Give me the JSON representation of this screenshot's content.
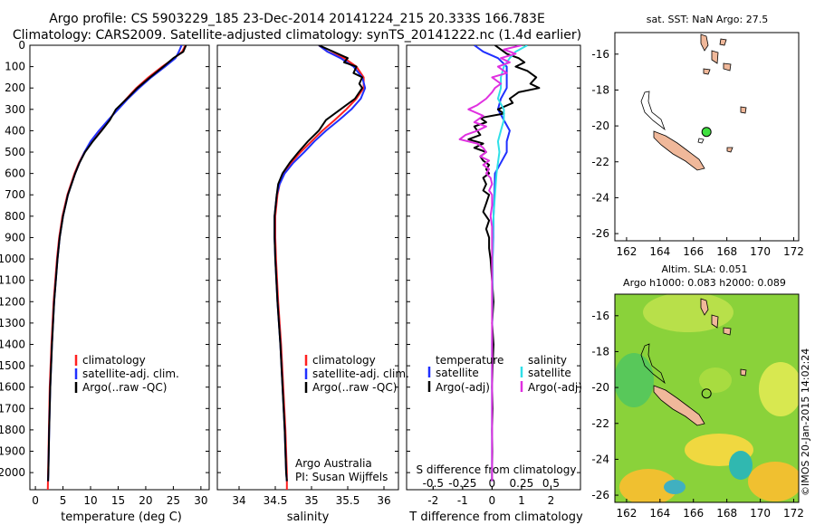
{
  "header": {
    "line1": "Argo profile: CS 5903229_185 23-Dec-2014 20141224_215 20.333S 166.783E",
    "line2": "Climatology: CARS2009. Satellite-adjusted climatology: synTS_20141222.nc (1.4d earlier)"
  },
  "colors": {
    "climatology": "#ff2020",
    "satellite": "#2030ff",
    "argo": "#000000",
    "sat_salinity": "#30e0e8",
    "argo_salinity": "#e030e0",
    "land": "#f0b89a"
  },
  "chart_data": [
    {
      "type": "line",
      "name": "temperature-profile",
      "xlabel": "temperature (deg C)",
      "ylabel": "depth",
      "xlim": [
        -1,
        31.5
      ],
      "ylim": [
        2080,
        0
      ],
      "xticks": [
        "0",
        "5",
        "10",
        "15",
        "20",
        "25",
        "30"
      ],
      "xtick_values": [
        0,
        5,
        10,
        15,
        20,
        25,
        30
      ],
      "yticks": [
        "0",
        "100",
        "200",
        "300",
        "400",
        "500",
        "600",
        "700",
        "800",
        "900",
        "1000",
        "1100",
        "1200",
        "1300",
        "1400",
        "1500",
        "1600",
        "1700",
        "1800",
        "1900",
        "2000"
      ],
      "ytick_values": [
        0,
        100,
        200,
        300,
        400,
        500,
        600,
        700,
        800,
        900,
        1000,
        1100,
        1200,
        1300,
        1400,
        1500,
        1600,
        1700,
        1800,
        1900,
        2000
      ],
      "legend": [
        "climatology",
        "satellite-adj. clim.",
        "Argo(..raw -QC)"
      ],
      "series": [
        {
          "name": "climatology",
          "depth": [
            0,
            30,
            60,
            100,
            150,
            200,
            250,
            300,
            350,
            400,
            450,
            500,
            550,
            600,
            700,
            800,
            900,
            1000,
            1200,
            1400,
            1600,
            1800,
            2000,
            2080
          ],
          "values": [
            27.2,
            26.6,
            25.2,
            23.0,
            20.5,
            18.3,
            16.5,
            14.8,
            13.3,
            11.7,
            10.2,
            8.9,
            7.9,
            7.1,
            5.8,
            4.9,
            4.3,
            3.9,
            3.3,
            2.9,
            2.6,
            2.45,
            2.3,
            2.25
          ]
        },
        {
          "name": "satellite",
          "depth": [
            0,
            30,
            60,
            100,
            150,
            200,
            250,
            300,
            350,
            400,
            450,
            500,
            550,
            600,
            700,
            800,
            900,
            1000,
            1200,
            1400,
            1600,
            1800,
            2000,
            2040
          ],
          "values": [
            26.5,
            26.0,
            25.4,
            23.5,
            21.0,
            18.8,
            16.8,
            15.0,
            13.2,
            11.5,
            10.0,
            8.9,
            8.0,
            7.2,
            5.9,
            5.0,
            4.4,
            4.0,
            3.4,
            3.0,
            2.7,
            2.5,
            2.35,
            2.3
          ]
        },
        {
          "name": "argo",
          "depth": [
            0,
            30,
            60,
            100,
            150,
            200,
            250,
            300,
            350,
            400,
            450,
            500,
            550,
            600,
            700,
            800,
            900,
            1000,
            1200,
            1400,
            1600,
            1800,
            2000,
            2040
          ],
          "values": [
            27.3,
            26.8,
            25.0,
            23.2,
            20.8,
            18.5,
            16.6,
            14.6,
            13.5,
            12.0,
            10.4,
            9.0,
            8.0,
            7.2,
            5.9,
            5.0,
            4.4,
            4.0,
            3.4,
            3.0,
            2.7,
            2.5,
            2.35,
            2.3
          ]
        }
      ]
    },
    {
      "type": "line",
      "name": "salinity-profile",
      "xlabel": "salinity",
      "xlim": [
        33.7,
        36.2
      ],
      "ylim": [
        2080,
        0
      ],
      "xticks": [
        "34",
        "34.5",
        "35",
        "35.5",
        "36"
      ],
      "xtick_values": [
        34,
        34.5,
        35,
        35.5,
        36
      ],
      "legend": [
        "climatology",
        "satellite-adj. clim.",
        "Argo(..raw -QC)"
      ],
      "annotation": [
        "Argo Australia",
        "PI: Susan Wijffels"
      ],
      "series": [
        {
          "name": "climatology",
          "depth": [
            0,
            30,
            60,
            100,
            150,
            200,
            250,
            300,
            350,
            400,
            450,
            500,
            550,
            600,
            650,
            700,
            800,
            900,
            1000,
            1200,
            1400,
            1600,
            1800,
            2000,
            2080
          ],
          "values": [
            35.1,
            35.22,
            35.45,
            35.62,
            35.72,
            35.72,
            35.62,
            35.48,
            35.32,
            35.15,
            35.0,
            34.85,
            34.72,
            34.62,
            34.56,
            34.53,
            34.5,
            34.5,
            34.51,
            34.54,
            34.58,
            34.61,
            34.64,
            34.66,
            34.66
          ]
        },
        {
          "name": "satellite",
          "depth": [
            0,
            30,
            60,
            100,
            150,
            200,
            250,
            300,
            350,
            400,
            450,
            500,
            550,
            600,
            650,
            700,
            800,
            900,
            1000,
            1200,
            1400,
            1600,
            1800,
            2000,
            2040
          ],
          "values": [
            35.1,
            35.22,
            35.4,
            35.58,
            35.7,
            35.74,
            35.68,
            35.55,
            35.38,
            35.2,
            35.04,
            34.9,
            34.75,
            34.63,
            34.56,
            34.52,
            34.49,
            34.49,
            34.5,
            34.53,
            34.57,
            34.6,
            34.63,
            34.65,
            34.66
          ]
        },
        {
          "name": "argo",
          "depth": [
            0,
            30,
            60,
            80,
            100,
            130,
            150,
            180,
            200,
            250,
            300,
            350,
            400,
            450,
            500,
            550,
            600,
            650,
            700,
            800,
            900,
            1000,
            1200,
            1400,
            1600,
            1800,
            2000,
            2040
          ],
          "values": [
            35.1,
            35.3,
            35.5,
            35.45,
            35.62,
            35.58,
            35.7,
            35.66,
            35.7,
            35.6,
            35.4,
            35.2,
            35.1,
            34.95,
            34.82,
            34.7,
            34.6,
            34.54,
            34.52,
            34.49,
            34.49,
            34.5,
            34.53,
            34.57,
            34.6,
            34.63,
            34.65,
            34.66
          ]
        }
      ]
    },
    {
      "type": "line",
      "name": "difference-profile",
      "xlabel": "T difference from climatology",
      "xlabel_top": "S difference from climatology",
      "xlim": [
        -2.9,
        3.0
      ],
      "ylim": [
        2080,
        0
      ],
      "xticks": [
        "-2",
        "-1",
        "0",
        "1",
        "2"
      ],
      "xtick_values": [
        -2,
        -1,
        0,
        1,
        2
      ],
      "xticks_top": [
        "-0.5",
        "-0.25",
        "0",
        "0.25",
        "0.5"
      ],
      "xtick_top_values": [
        -2,
        -1,
        0,
        1,
        2
      ],
      "legend_temperature": [
        "temperature",
        "satellite",
        "Argo(-adj)"
      ],
      "legend_salinity": [
        "salinity",
        "satellite",
        "Argo(-adj)"
      ],
      "series": [
        {
          "name": "T satellite",
          "depth": [
            0,
            30,
            60,
            100,
            150,
            200,
            250,
            300,
            350,
            400,
            450,
            500,
            550,
            600,
            700,
            800,
            900,
            1000,
            1200,
            1400,
            1600,
            1800,
            2000,
            2040
          ],
          "values": [
            -0.6,
            -0.3,
            0.2,
            0.5,
            0.5,
            0.5,
            0.3,
            0.2,
            0.4,
            0.6,
            0.5,
            0.5,
            0.3,
            0.1,
            0.08,
            0.05,
            0.04,
            0.02,
            0.01,
            0.0,
            0.0,
            0.0,
            0.0,
            0.0
          ]
        },
        {
          "name": "T argo",
          "depth": [
            0,
            20,
            40,
            60,
            80,
            100,
            120,
            150,
            180,
            200,
            220,
            250,
            270,
            300,
            320,
            340,
            360,
            380,
            400,
            420,
            440,
            460,
            480,
            500,
            520,
            540,
            560,
            580,
            600,
            620,
            650,
            680,
            700,
            740,
            780,
            820,
            860,
            900,
            950,
            1000,
            1100,
            1200,
            1300,
            1400,
            1500,
            1600,
            1700,
            1800,
            1900,
            2000,
            2040
          ],
          "values": [
            0.1,
            0.3,
            0.5,
            0.9,
            1.1,
            0.8,
            1.2,
            1.5,
            1.3,
            1.6,
            0.9,
            0.6,
            0.7,
            0.2,
            0.4,
            -0.4,
            -0.2,
            -0.6,
            -0.5,
            -0.4,
            -0.8,
            -0.3,
            -0.6,
            -0.2,
            -0.4,
            -0.3,
            -0.1,
            -0.2,
            -0.1,
            -0.3,
            -0.2,
            -0.3,
            -0.1,
            -0.2,
            -0.3,
            -0.1,
            -0.2,
            -0.1,
            -0.1,
            -0.05,
            0.0,
            0.05,
            0.0,
            0.05,
            0.02,
            0.0,
            0.02,
            0.0,
            0.01,
            0.0,
            0.0
          ]
        },
        {
          "name": "S satellite",
          "depth": [
            0,
            30,
            60,
            100,
            150,
            200,
            250,
            300,
            350,
            400,
            450,
            500,
            550,
            600,
            700,
            800,
            900,
            1000,
            1200,
            1400,
            1600,
            1800,
            2000,
            2040
          ],
          "values": [
            1.2,
            0.8,
            0.6,
            0.4,
            0.3,
            0.3,
            0.2,
            0.4,
            0.4,
            0.3,
            0.2,
            0.25,
            0.2,
            0.15,
            0.1,
            0.05,
            0.03,
            0.02,
            0.01,
            0.0,
            0.0,
            0.0,
            0.0,
            0.0
          ]
        },
        {
          "name": "S argo",
          "depth": [
            0,
            20,
            40,
            60,
            80,
            100,
            130,
            150,
            180,
            200,
            220,
            250,
            280,
            300,
            330,
            360,
            380,
            400,
            420,
            440,
            460,
            480,
            500,
            520,
            540,
            560,
            580,
            600,
            620,
            650,
            680,
            700,
            750,
            800,
            850,
            900,
            1000,
            1100,
            1200,
            1400,
            1600,
            1800,
            2000,
            2040
          ],
          "values": [
            1.0,
            0.4,
            0.8,
            0.3,
            0.6,
            0.2,
            0.5,
            0.0,
            0.3,
            0.1,
            0.0,
            -0.2,
            -0.5,
            -0.8,
            -0.3,
            -0.6,
            -0.2,
            -0.5,
            -0.9,
            -1.1,
            -0.5,
            -0.3,
            -0.2,
            -0.4,
            -0.1,
            -0.3,
            -0.1,
            -0.2,
            -0.05,
            0.0,
            -0.1,
            0.0,
            0.0,
            -0.05,
            0.0,
            0.0,
            0.0,
            0.0,
            0.0,
            0.0,
            0.0,
            0.0,
            0.0,
            0.0
          ]
        }
      ]
    },
    {
      "type": "heatmap",
      "name": "sst-map",
      "title": "sat. SST: NaN Argo: 27.5",
      "xticks": [
        "162",
        "164",
        "166",
        "168",
        "170",
        "172"
      ],
      "yticks": [
        "-16",
        "-18",
        "-20",
        "-22",
        "-24",
        "-26"
      ],
      "xlim": [
        161.3,
        172.3
      ],
      "ylim": [
        -26.4,
        -14.8
      ],
      "argo_position": [
        166.783,
        -20.333
      ]
    },
    {
      "type": "heatmap",
      "name": "sla-map",
      "title_line1": "Altim. SLA: 0.051",
      "title_line2": "Argo h1000: 0.083 h2000: 0.089",
      "xticks": [
        "162",
        "164",
        "166",
        "168",
        "170",
        "172"
      ],
      "yticks": [
        "-16",
        "-18",
        "-20",
        "-22",
        "-24",
        "-26"
      ],
      "xlim": [
        161.3,
        172.3
      ],
      "ylim": [
        -26.4,
        -14.8
      ],
      "argo_position": [
        166.783,
        -20.333
      ]
    }
  ],
  "footer": {
    "stamp": "©IMOS 20-Jan-2015 14:02:24"
  }
}
